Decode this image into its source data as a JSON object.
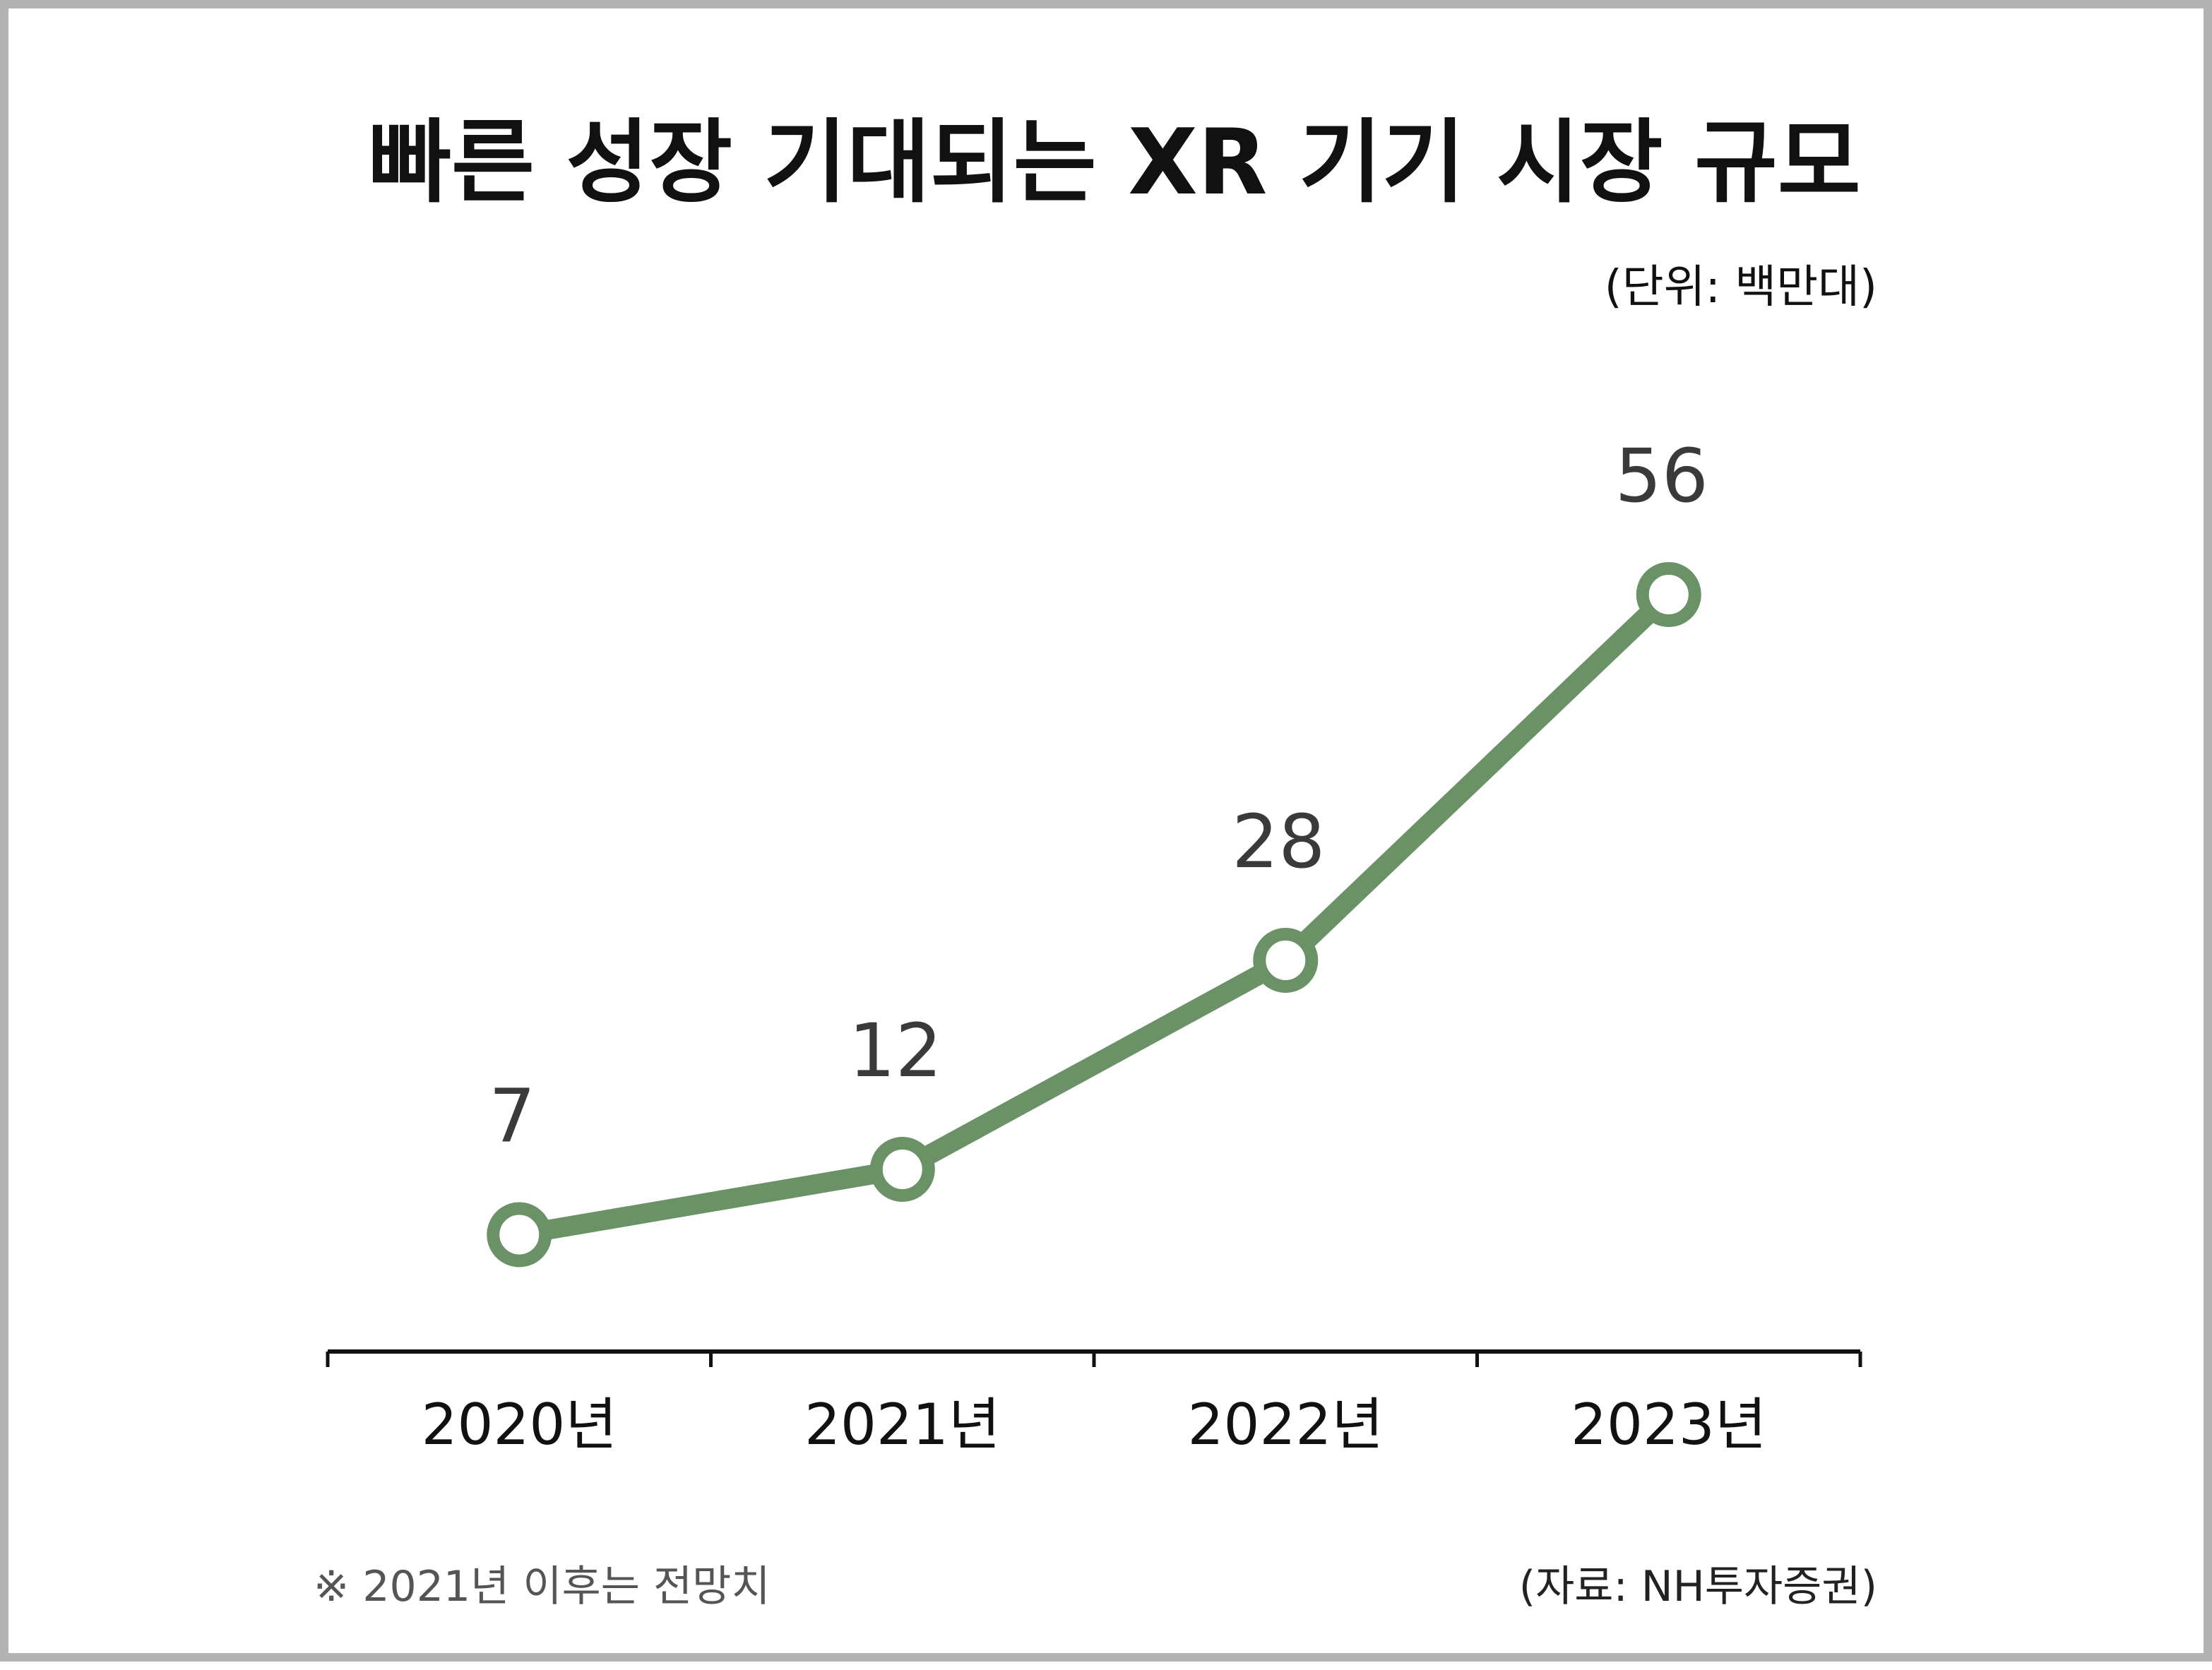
{
  "chart_data": {
    "type": "line",
    "title": "빠른 성장 기대되는 XR 기기 시장 규모",
    "unit_label": "(단위: 백만대)",
    "categories": [
      "2020년",
      "2021년",
      "2022년",
      "2023년"
    ],
    "values": [
      7,
      12,
      28,
      56
    ],
    "data_labels": [
      "7",
      "12",
      "28",
      "56"
    ],
    "note": "※ 2021년 이후는 전망치",
    "source": "(자료: NH투자증권)",
    "line_color": "#6b9267",
    "marker_fill": "#ffffff",
    "axis_color": "#111111",
    "grid": false,
    "legend": "none"
  }
}
